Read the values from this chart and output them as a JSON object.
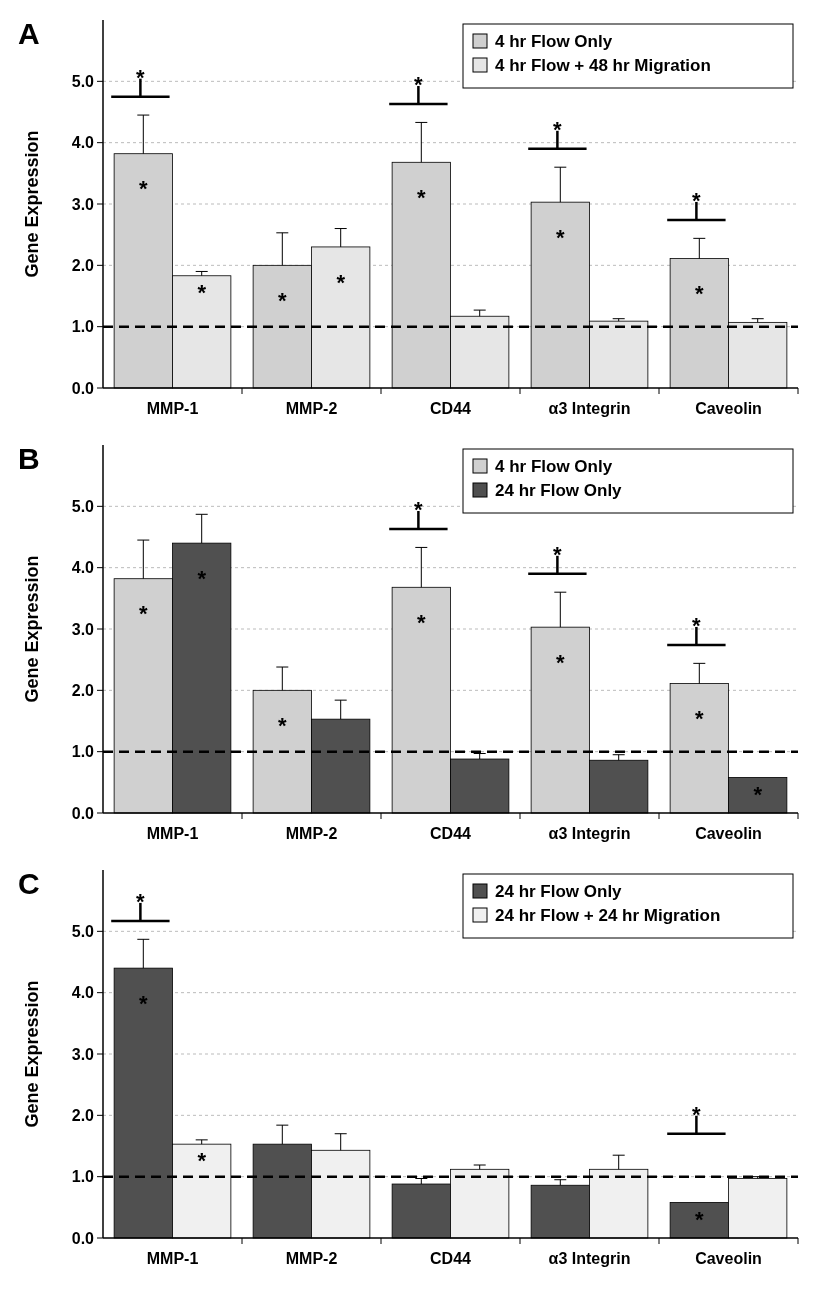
{
  "chart_data": [
    {
      "type": "bar",
      "title": "A",
      "ylabel": "Gene Expression",
      "categories": [
        "MMP-1",
        "MMP-2",
        "CD44",
        "α3 Integrin",
        "Caveolin"
      ],
      "ylim": [
        0,
        6
      ],
      "yticks": [
        {
          "value": 0,
          "label": "0.0"
        },
        {
          "value": 1,
          "label": "1.0"
        },
        {
          "value": 2,
          "label": "2.0"
        },
        {
          "value": 3,
          "label": "3.0"
        },
        {
          "value": 4,
          "label": "4.0"
        },
        {
          "value": 5,
          "label": "5.0"
        }
      ],
      "grid": "y",
      "legend": "top right",
      "ref_lines": [
        {
          "axis": "y",
          "value": 1,
          "line_style": "dashed",
          "color": "#000000"
        }
      ],
      "series": [
        {
          "name": "4 hr Flow Only",
          "color": "#d0d0d0",
          "values": [
            3.82,
            2.0,
            3.68,
            3.03,
            2.11
          ],
          "errors": [
            0.63,
            0.53,
            0.65,
            0.57,
            0.33
          ],
          "value_labels": [
            "*",
            "*",
            "*",
            "*",
            "*"
          ]
        },
        {
          "name": "4 hr Flow + 48 hr Migration",
          "color": "#e6e6e6",
          "values": [
            1.83,
            2.3,
            1.17,
            1.09,
            1.07
          ],
          "errors": [
            0.07,
            0.3,
            0.1,
            0.04,
            0.06
          ],
          "value_labels": [
            "*",
            "*",
            null,
            null,
            null
          ]
        }
      ],
      "annotations": [
        "*",
        "*",
        "*",
        "*"
      ]
    },
    {
      "type": "bar",
      "title": "B",
      "ylabel": "Gene Expression",
      "categories": [
        "MMP-1",
        "MMP-2",
        "CD44",
        "α3 Integrin",
        "Caveolin"
      ],
      "ylim": [
        0,
        6
      ],
      "yticks": [
        {
          "value": 0,
          "label": "0.0"
        },
        {
          "value": 1,
          "label": "1.0"
        },
        {
          "value": 2,
          "label": "2.0"
        },
        {
          "value": 3,
          "label": "3.0"
        },
        {
          "value": 4,
          "label": "4.0"
        },
        {
          "value": 5,
          "label": "5.0"
        }
      ],
      "grid": "y",
      "legend": "top right",
      "ref_lines": [
        {
          "axis": "y",
          "value": 1,
          "line_style": "dashed",
          "color": "#000000"
        }
      ],
      "series": [
        {
          "name": "4 hr Flow Only",
          "color": "#d0d0d0",
          "values": [
            3.82,
            2.0,
            3.68,
            3.03,
            2.11
          ],
          "errors": [
            0.63,
            0.38,
            0.65,
            0.57,
            0.33
          ],
          "value_labels": [
            "*",
            "*",
            "*",
            "*",
            "*"
          ]
        },
        {
          "name": "24 hr Flow Only",
          "color": "#505050",
          "values": [
            4.4,
            1.53,
            0.88,
            0.86,
            0.58
          ],
          "errors": [
            0.47,
            0.31,
            0.09,
            0.09,
            null
          ],
          "value_labels": [
            "*",
            null,
            null,
            null,
            "*"
          ]
        }
      ],
      "annotations": [
        "*",
        "*",
        "*"
      ]
    },
    {
      "type": "bar",
      "title": "C",
      "ylabel": "Gene Expression",
      "categories": [
        "MMP-1",
        "MMP-2",
        "CD44",
        "α3 Integrin",
        "Caveolin"
      ],
      "ylim": [
        0,
        6
      ],
      "yticks": [
        {
          "value": 0,
          "label": "0.0"
        },
        {
          "value": 1,
          "label": "1.0"
        },
        {
          "value": 2,
          "label": "2.0"
        },
        {
          "value": 3,
          "label": "3.0"
        },
        {
          "value": 4,
          "label": "4.0"
        },
        {
          "value": 5,
          "label": "5.0"
        }
      ],
      "grid": "y",
      "legend": "top right",
      "ref_lines": [
        {
          "axis": "y",
          "value": 1,
          "line_style": "dashed",
          "color": "#000000"
        }
      ],
      "series": [
        {
          "name": "24 hr Flow Only",
          "color": "#505050",
          "values": [
            4.4,
            1.53,
            0.88,
            0.86,
            0.58
          ],
          "errors": [
            0.47,
            0.31,
            0.09,
            0.09,
            null
          ],
          "value_labels": [
            "*",
            null,
            null,
            null,
            "*"
          ]
        },
        {
          "name": "24 hr Flow + 24 hr Migration",
          "color": "#f0f0f0",
          "values": [
            1.53,
            1.43,
            1.12,
            1.12,
            0.97
          ],
          "errors": [
            0.07,
            0.27,
            0.07,
            0.23,
            0.03
          ],
          "value_labels": [
            "*",
            null,
            null,
            null,
            null
          ]
        }
      ],
      "annotations": [
        "*",
        "*"
      ]
    }
  ]
}
